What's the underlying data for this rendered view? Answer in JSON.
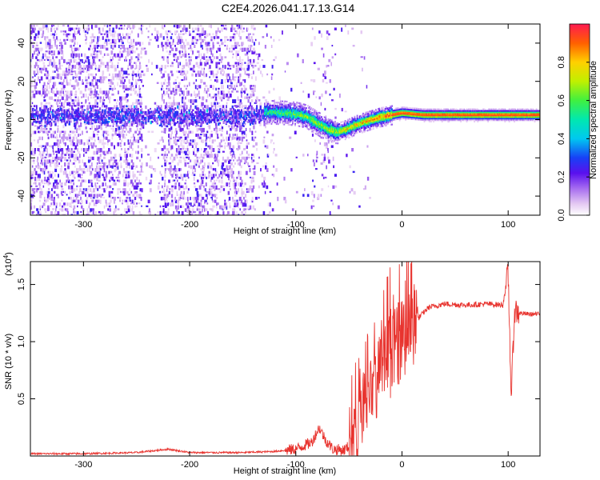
{
  "title": "C2E4.2026.041.17.13.G14",
  "chart_data": [
    {
      "type": "heatmap",
      "name": "spectrogram",
      "xlabel": "Height of straight line (km)",
      "ylabel": "Frequency (Hz)",
      "xlim": [
        -350,
        130
      ],
      "ylim": [
        -50,
        50
      ],
      "xticks": [
        -300,
        -200,
        -100,
        0,
        100
      ],
      "xtick_labels": [
        "-300",
        "-200",
        "-100",
        "0",
        "100"
      ],
      "yticks": [
        -40,
        -20,
        0,
        20,
        40
      ],
      "ytick_labels": [
        "-40",
        "-20",
        "0",
        "20",
        "40"
      ],
      "colorbar": {
        "label": "Normalized spectral amplitude",
        "range": [
          0,
          1
        ],
        "ticks": [
          0.0,
          0.2,
          0.4,
          0.6,
          0.8
        ],
        "tick_labels": [
          "0.0",
          "0.2",
          "0.4",
          "0.6",
          "0.8"
        ]
      },
      "signal_track": {
        "description": "frequency of the dominant (high-amplitude) tone vs height",
        "x": [
          -130,
          -110,
          -100,
          -90,
          -80,
          -70,
          -62,
          -55,
          -45,
          -35,
          -20,
          -5,
          0,
          20,
          60,
          100,
          130
        ],
        "y": [
          4,
          3.5,
          3,
          1.5,
          -2,
          -5,
          -6.5,
          -5.5,
          -3,
          -1,
          1.5,
          3,
          3.5,
          2.5,
          2.5,
          2.5,
          2.5
        ]
      },
      "noise_band_center_hz": 2
    },
    {
      "type": "line",
      "name": "snr",
      "xlabel": "Height of straight line (km)",
      "ylabel": "SNR (10 * v/v)",
      "y_multiplier": "(x10",
      "y_multiplier_exp": "4",
      "y_multiplier_close": ")",
      "xlim": [
        -350,
        130
      ],
      "ylim": [
        0,
        1.7
      ],
      "xticks": [
        -300,
        -200,
        -100,
        0,
        100
      ],
      "xtick_labels": [
        "-300",
        "-200",
        "-100",
        "0",
        "100"
      ],
      "yticks": [
        0.5,
        1.0,
        1.5
      ],
      "ytick_labels": [
        "0.5",
        "1.0",
        "1.5"
      ],
      "series": [
        {
          "name": "SNR",
          "color": "#e8332e",
          "x": [
            -350,
            -300,
            -250,
            -220,
            -200,
            -150,
            -120,
            -100,
            -85,
            -78,
            -72,
            -65,
            -55,
            -45,
            -35,
            -25,
            -15,
            -5,
            5,
            15,
            25,
            40,
            60,
            80,
            95,
            100,
            103,
            106,
            110,
            120,
            130
          ],
          "y": [
            0.02,
            0.02,
            0.03,
            0.06,
            0.03,
            0.03,
            0.04,
            0.06,
            0.12,
            0.25,
            0.14,
            0.06,
            0.05,
            0.12,
            0.5,
            0.65,
            0.8,
            0.95,
            1.1,
            1.2,
            1.3,
            1.33,
            1.32,
            1.33,
            1.32,
            1.6,
            0.5,
            1.28,
            1.25,
            1.24,
            1.24
          ]
        }
      ]
    }
  ]
}
